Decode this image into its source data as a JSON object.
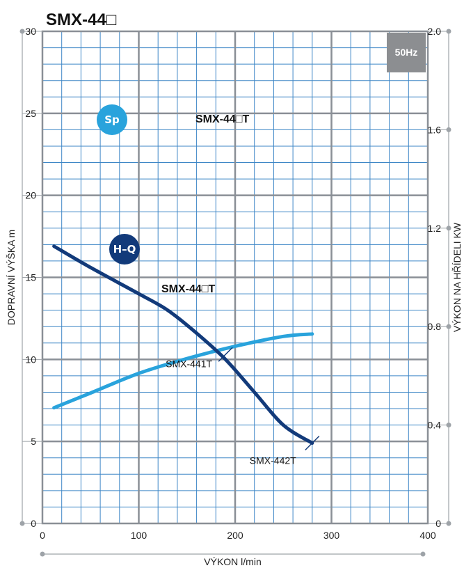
{
  "chart_data": {
    "type": "line",
    "title": "SMX-44□",
    "frequency_badge": "50Hz",
    "xlabel": "VÝKON  l/min",
    "ylabel": "DOPRAVNÍ VÝŠKA  m",
    "y2label": "VÝKON NA HŘÍDELI  KW",
    "xlim": [
      0,
      400
    ],
    "ylim": [
      0,
      30
    ],
    "y2lim": [
      0,
      2.0
    ],
    "x_ticks": [
      "0",
      "100",
      "200",
      "300",
      "400"
    ],
    "y_ticks": [
      "0",
      "5",
      "10",
      "15",
      "20",
      "25",
      "30"
    ],
    "y2_ticks": [
      "0",
      "0.4",
      "0.8",
      "1.2",
      "1.6",
      "2.0"
    ],
    "grid": true,
    "series": [
      {
        "badge": "Sp",
        "name": "SMX-44□T",
        "axis": "right",
        "color": "#29a3dc",
        "x": [
          12,
          50,
          100,
          150,
          200,
          250,
          280
        ],
        "y": [
          0.47,
          0.53,
          0.61,
          0.67,
          0.72,
          0.76,
          0.77
        ]
      },
      {
        "badge": "H–Q",
        "name": "SMX-44□T",
        "axis": "left",
        "color": "#123a7a",
        "x": [
          12,
          50,
          100,
          130,
          160,
          190,
          220,
          250,
          280
        ],
        "y": [
          16.9,
          15.6,
          14.0,
          13.0,
          11.6,
          10.0,
          8.0,
          6.0,
          4.9
        ]
      }
    ],
    "annotations": [
      {
        "text": "SMX-441T",
        "x": 190,
        "y": 10.3
      },
      {
        "text": "SMX-442T",
        "x": 280,
        "y": 4.9
      }
    ]
  }
}
